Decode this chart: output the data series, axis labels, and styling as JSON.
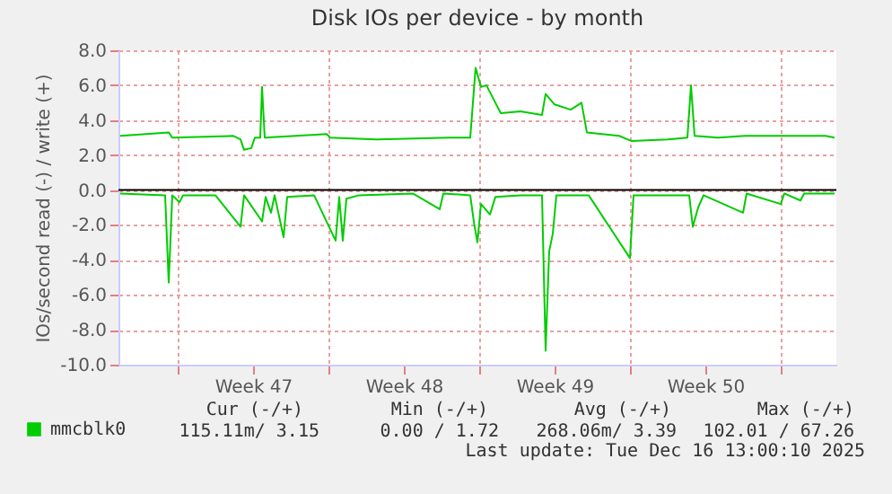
{
  "chart_data": {
    "type": "line",
    "title": "Disk IOs per device - by month",
    "ylabel": "IOs/second read (-) / write (+)",
    "xlim": [
      "2025-11-14T06:00",
      "2025-12-17T14:00"
    ],
    "ylim": [
      -10,
      8
    ],
    "xticks": [
      {
        "value": "2025-11-17",
        "label": null
      },
      {
        "value": "2025-11-20T12:00",
        "label": "Week 47"
      },
      {
        "value": "2025-11-24",
        "label": null
      },
      {
        "value": "2025-11-27T12:00",
        "label": "Week 48"
      },
      {
        "value": "2025-12-01",
        "label": null
      },
      {
        "value": "2025-12-04T12:00",
        "label": "Week 49"
      },
      {
        "value": "2025-12-08",
        "label": null
      },
      {
        "value": "2025-12-11T12:00",
        "label": "Week 50"
      },
      {
        "value": "2025-12-15",
        "label": null
      }
    ],
    "yticks": [
      {
        "value": -10,
        "label": "-10.0"
      },
      {
        "value": -8,
        "label": "-8.0"
      },
      {
        "value": -6,
        "label": "-6.0"
      },
      {
        "value": -4,
        "label": "-4.0"
      },
      {
        "value": -2,
        "label": "-2.0"
      },
      {
        "value": 0,
        "label": "0.0"
      },
      {
        "value": 2,
        "label": "2.0"
      },
      {
        "value": 4,
        "label": "4.0"
      },
      {
        "value": 6,
        "label": "6.0"
      },
      {
        "value": 8,
        "label": "8.0"
      }
    ],
    "grid": true,
    "legend": "bottom left",
    "marker": "none",
    "line_style": "solid",
    "ref_lines": [
      {
        "axis": "y",
        "value": 0,
        "label": null,
        "color": "#000000"
      }
    ],
    "series": [
      {
        "name": "mmcblk0",
        "color": "#00cc00",
        "x": [
          "2025-11-14T08:00",
          "2025-11-16T14:00",
          "2025-11-16T18:00",
          "2025-11-19T14:00",
          "2025-11-19T22:00",
          "2025-11-20T02:00",
          "2025-11-20T10:00",
          "2025-11-20T14:00",
          "2025-11-20T20:00",
          "2025-11-20T22:00",
          "2025-11-21T01:00",
          "2025-11-23T22:00",
          "2025-11-24T02:00",
          "2025-11-26T06:00",
          "2025-11-29T14:00",
          "2025-11-30T14:00",
          "2025-11-30T20:00",
          "2025-12-01T02:00",
          "2025-12-01T08:00",
          "2025-12-01T12:00",
          "2025-12-01T18:00",
          "2025-12-02T00:00",
          "2025-12-02T22:00",
          "2025-12-03T22:00",
          "2025-12-04T02:00",
          "2025-12-04T12:00",
          "2025-12-05T06:00",
          "2025-12-05T18:00",
          "2025-12-06T00:00",
          "2025-12-07T12:00",
          "2025-12-08T02:00",
          "2025-12-09T18:00",
          "2025-12-10T16:00",
          "2025-12-10T20:00",
          "2025-12-11T00:00",
          "2025-12-12T02:00",
          "2025-12-13T08:00",
          "2025-12-17T02:00",
          "2025-12-17T12:00"
        ],
        "values": [
          3.1,
          3.3,
          3.0,
          3.1,
          2.9,
          2.3,
          2.4,
          3.0,
          3.0,
          5.9,
          3.0,
          3.2,
          3.0,
          2.9,
          3.0,
          3.0,
          7.0,
          5.9,
          6.0,
          5.6,
          5.0,
          4.4,
          4.5,
          4.3,
          5.5,
          4.9,
          4.6,
          5.0,
          3.3,
          3.1,
          2.8,
          2.9,
          3.0,
          6.0,
          3.1,
          3.0,
          3.1,
          3.1,
          3.0
        ]
      },
      {
        "color": "#00cc00",
        "x": [
          "2025-11-14T08:00",
          "2025-11-16T10:00",
          "2025-11-16T14:00",
          "2025-11-16T18:00",
          "2025-11-17T02:00",
          "2025-11-17T06:00",
          "2025-11-18T18:00",
          "2025-11-19T22:00",
          "2025-11-20T02:00",
          "2025-11-20T22:00",
          "2025-11-21T02:00",
          "2025-11-21T08:00",
          "2025-11-21T12:00",
          "2025-11-21T22:00",
          "2025-11-22T02:00",
          "2025-11-23T08:00",
          "2025-11-24T08:00",
          "2025-11-24T12:00",
          "2025-11-24T16:00",
          "2025-11-24T20:00",
          "2025-11-25T10:00",
          "2025-11-27T22:00",
          "2025-11-29T04:00",
          "2025-11-29T08:00",
          "2025-11-30T14:00",
          "2025-11-30T18:00",
          "2025-11-30T22:00",
          "2025-12-01T02:00",
          "2025-12-01T12:00",
          "2025-12-01T18:00",
          "2025-12-02T22:00",
          "2025-12-03T22:00",
          "2025-12-04T02:00",
          "2025-12-04T06:00",
          "2025-12-04T10:00",
          "2025-12-04T14:00",
          "2025-12-06T02:00",
          "2025-12-08T00:00",
          "2025-12-08T04:00",
          "2025-12-10T18:00",
          "2025-12-10T22:00",
          "2025-12-11T04:00",
          "2025-12-11T10:00",
          "2025-12-13T06:00",
          "2025-12-13T10:00",
          "2025-12-15T00:00",
          "2025-12-15T04:00",
          "2025-12-15T22:00",
          "2025-12-16T02:00",
          "2025-12-17T12:00"
        ],
        "values": [
          -0.2,
          -0.3,
          -5.3,
          -0.3,
          -0.7,
          -0.3,
          -0.3,
          -2.1,
          -0.3,
          -1.8,
          -0.4,
          -1.3,
          -0.3,
          -2.7,
          -0.4,
          -0.3,
          -2.9,
          -0.4,
          -2.9,
          -0.5,
          -0.3,
          -0.2,
          -1.1,
          -0.2,
          -0.3,
          -1.8,
          -3.0,
          -0.8,
          -1.4,
          -0.4,
          -0.3,
          -0.3,
          -9.2,
          -3.5,
          -2.5,
          -0.3,
          -0.3,
          -3.9,
          -0.3,
          -0.3,
          -2.1,
          -1.0,
          -0.3,
          -1.3,
          -0.2,
          -0.8,
          -0.2,
          -0.6,
          -0.2,
          -0.2
        ]
      }
    ],
    "annotations": [
      "Cur (-/+)",
      "Min (-/+)",
      "Avg (-/+)",
      "Max (-/+)",
      "115.11m/  3.15",
      "0.00 /  1.72",
      "268.06m/  3.39",
      "102.01 / 67.26",
      "Last update: Tue Dec 16 13:00:10 2025"
    ]
  }
}
